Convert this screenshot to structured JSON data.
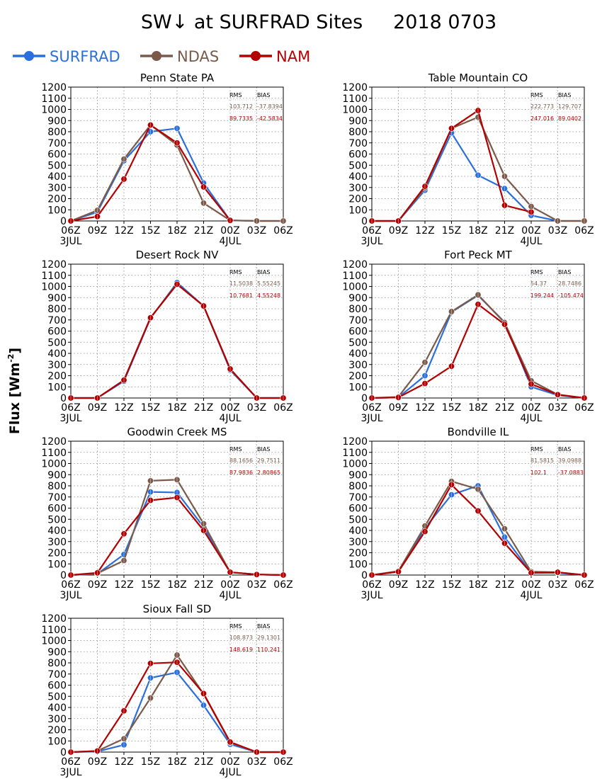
{
  "title": "SW↓ at SURFRAD Sites     2018 0703",
  "ylabel_main": "Flux",
  "ylabel_unit": "[Wm",
  "ylabel_sup": "-2",
  "ylabel_close": "]",
  "legend": [
    {
      "name": "SURFRAD",
      "color": "#2a6fdb"
    },
    {
      "name": "NDAS",
      "color": "#7b5a4a"
    },
    {
      "name": "NAM",
      "color": "#b30000"
    }
  ],
  "stats_header": {
    "rms": "RMS",
    "bias": "BIAS"
  },
  "chart_data": [
    {
      "type": "line",
      "title": "Penn State PA",
      "x": [
        "06Z",
        "09Z",
        "12Z",
        "15Z",
        "18Z",
        "21Z",
        "00Z",
        "03Z",
        "06Z"
      ],
      "date_labels": [
        "3JUL",
        "4JUL"
      ],
      "yticks": [
        0,
        100,
        200,
        300,
        400,
        500,
        600,
        700,
        800,
        900,
        1000,
        1100,
        1200
      ],
      "ylim": [
        0,
        1200
      ],
      "grid": true,
      "series": [
        {
          "name": "SURFRAD",
          "values": [
            0,
            80,
            540,
            800,
            830,
            340,
            5,
            0,
            0
          ]
        },
        {
          "name": "NDAS",
          "values": [
            0,
            95,
            555,
            860,
            680,
            160,
            5,
            0,
            0
          ]
        },
        {
          "name": "NAM",
          "values": [
            0,
            40,
            375,
            860,
            700,
            305,
            5,
            null,
            null
          ]
        }
      ],
      "stats": {
        "ndas_rms": "103.712",
        "ndas_bias": "-37.8394",
        "nam_rms": "89.7335",
        "nam_bias": "-42.5834"
      }
    },
    {
      "type": "line",
      "title": "Table Mountain CO",
      "x": [
        "06Z",
        "09Z",
        "12Z",
        "15Z",
        "18Z",
        "21Z",
        "00Z",
        "03Z",
        "06Z"
      ],
      "date_labels": [
        "3JUL",
        "4JUL"
      ],
      "yticks": [
        0,
        100,
        200,
        300,
        400,
        500,
        600,
        700,
        800,
        900,
        1000,
        1100,
        1200
      ],
      "ylim": [
        0,
        1200
      ],
      "grid": true,
      "series": [
        {
          "name": "SURFRAD",
          "values": [
            0,
            0,
            275,
            790,
            410,
            290,
            50,
            0,
            0
          ]
        },
        {
          "name": "NDAS",
          "values": [
            0,
            0,
            295,
            830,
            930,
            400,
            130,
            0,
            0
          ]
        },
        {
          "name": "NAM",
          "values": [
            0,
            0,
            310,
            830,
            990,
            140,
            80,
            null,
            null
          ]
        }
      ],
      "stats": {
        "ndas_rms": "222.773",
        "ndas_bias": "129.707",
        "nam_rms": "247.016",
        "nam_bias": "89.0402"
      }
    },
    {
      "type": "line",
      "title": "Desert Rock NV",
      "x": [
        "06Z",
        "09Z",
        "12Z",
        "15Z",
        "18Z",
        "21Z",
        "00Z",
        "03Z",
        "06Z"
      ],
      "date_labels": [
        "3JUL",
        "4JUL"
      ],
      "yticks": [
        0,
        100,
        200,
        300,
        400,
        500,
        600,
        700,
        800,
        900,
        1000,
        1100,
        1200
      ],
      "ylim": [
        0,
        1200
      ],
      "grid": true,
      "series": [
        {
          "name": "SURFRAD",
          "values": [
            0,
            0,
            150,
            715,
            1035,
            825,
            250,
            0,
            0
          ]
        },
        {
          "name": "NDAS",
          "values": [
            0,
            0,
            160,
            720,
            1020,
            825,
            260,
            0,
            0
          ]
        },
        {
          "name": "NAM",
          "values": [
            0,
            0,
            160,
            720,
            1020,
            825,
            260,
            0,
            0
          ]
        }
      ],
      "stats": {
        "ndas_rms": "11.5038",
        "ndas_bias": "5.55245",
        "nam_rms": "10.7681",
        "nam_bias": "4.55248"
      }
    },
    {
      "type": "line",
      "title": "Fort Peck MT",
      "x": [
        "06Z",
        "09Z",
        "12Z",
        "15Z",
        "18Z",
        "21Z",
        "00Z",
        "03Z",
        "06Z"
      ],
      "date_labels": [
        "3JUL",
        "4JUL"
      ],
      "yticks": [
        0,
        100,
        200,
        300,
        400,
        500,
        600,
        700,
        800,
        900,
        1000,
        1100,
        1200
      ],
      "ylim": [
        0,
        1200
      ],
      "grid": true,
      "series": [
        {
          "name": "SURFRAD",
          "values": [
            0,
            5,
            200,
            770,
            920,
            680,
            100,
            25,
            0
          ]
        },
        {
          "name": "NDAS",
          "values": [
            0,
            10,
            320,
            775,
            925,
            675,
            155,
            30,
            0
          ]
        },
        {
          "name": "NAM",
          "values": [
            0,
            5,
            130,
            285,
            840,
            660,
            125,
            30,
            0
          ]
        }
      ],
      "stats": {
        "ndas_rms": "54.37",
        "ndas_bias": "28.7486",
        "nam_rms": "199.244",
        "nam_bias": "-105.474"
      }
    },
    {
      "type": "line",
      "title": "Goodwin Creek MS",
      "x": [
        "06Z",
        "09Z",
        "12Z",
        "15Z",
        "18Z",
        "21Z",
        "00Z",
        "03Z",
        "06Z"
      ],
      "date_labels": [
        "3JUL",
        "4JUL"
      ],
      "yticks": [
        0,
        100,
        200,
        300,
        400,
        500,
        600,
        700,
        800,
        900,
        1000,
        1100,
        1200
      ],
      "ylim": [
        0,
        1200
      ],
      "grid": true,
      "series": [
        {
          "name": "SURFRAD",
          "values": [
            0,
            10,
            185,
            745,
            740,
            430,
            25,
            5,
            0
          ]
        },
        {
          "name": "NDAS",
          "values": [
            0,
            15,
            130,
            845,
            855,
            460,
            25,
            5,
            0
          ]
        },
        {
          "name": "NAM",
          "values": [
            0,
            20,
            370,
            670,
            695,
            400,
            25,
            5,
            0
          ]
        }
      ],
      "stats": {
        "ndas_rms": "88.1656",
        "ndas_bias": "29.7511",
        "nam_rms": "87.9836",
        "nam_bias": "2.80865"
      }
    },
    {
      "type": "line",
      "title": "Bondville IL",
      "x": [
        "06Z",
        "09Z",
        "12Z",
        "15Z",
        "18Z",
        "21Z",
        "00Z",
        "03Z",
        "06Z"
      ],
      "date_labels": [
        "3JUL",
        "4JUL"
      ],
      "yticks": [
        0,
        100,
        200,
        300,
        400,
        500,
        600,
        700,
        800,
        900,
        1000,
        1100,
        1200
      ],
      "ylim": [
        0,
        1200
      ],
      "grid": true,
      "series": [
        {
          "name": "SURFRAD",
          "values": [
            0,
            30,
            420,
            720,
            800,
            340,
            20,
            20,
            0
          ]
        },
        {
          "name": "NDAS",
          "values": [
            0,
            35,
            440,
            840,
            770,
            415,
            30,
            25,
            0
          ]
        },
        {
          "name": "NAM",
          "values": [
            0,
            30,
            390,
            810,
            575,
            285,
            20,
            25,
            0
          ]
        }
      ],
      "stats": {
        "ndas_rms": "81.5815",
        "ndas_bias": "39.0988",
        "nam_rms": "102.1",
        "nam_bias": "-37.0883"
      }
    },
    {
      "type": "line",
      "title": "Sioux Fall SD",
      "x": [
        "06Z",
        "09Z",
        "12Z",
        "15Z",
        "18Z",
        "21Z",
        "00Z",
        "03Z",
        "06Z"
      ],
      "date_labels": [
        "3JUL",
        "4JUL"
      ],
      "yticks": [
        0,
        100,
        200,
        300,
        400,
        500,
        600,
        700,
        800,
        900,
        1000,
        1100,
        1200
      ],
      "ylim": [
        0,
        1200
      ],
      "grid": true,
      "series": [
        {
          "name": "SURFRAD",
          "values": [
            0,
            5,
            65,
            665,
            715,
            420,
            70,
            0,
            0
          ]
        },
        {
          "name": "NDAS",
          "values": [
            0,
            10,
            120,
            485,
            870,
            520,
            85,
            0,
            0
          ]
        },
        {
          "name": "NAM",
          "values": [
            0,
            10,
            370,
            795,
            805,
            525,
            90,
            0,
            0
          ]
        }
      ],
      "stats": {
        "ndas_rms": "108.873",
        "ndas_bias": "29.1301",
        "nam_rms": "148.619",
        "nam_bias": "110.241"
      }
    }
  ]
}
